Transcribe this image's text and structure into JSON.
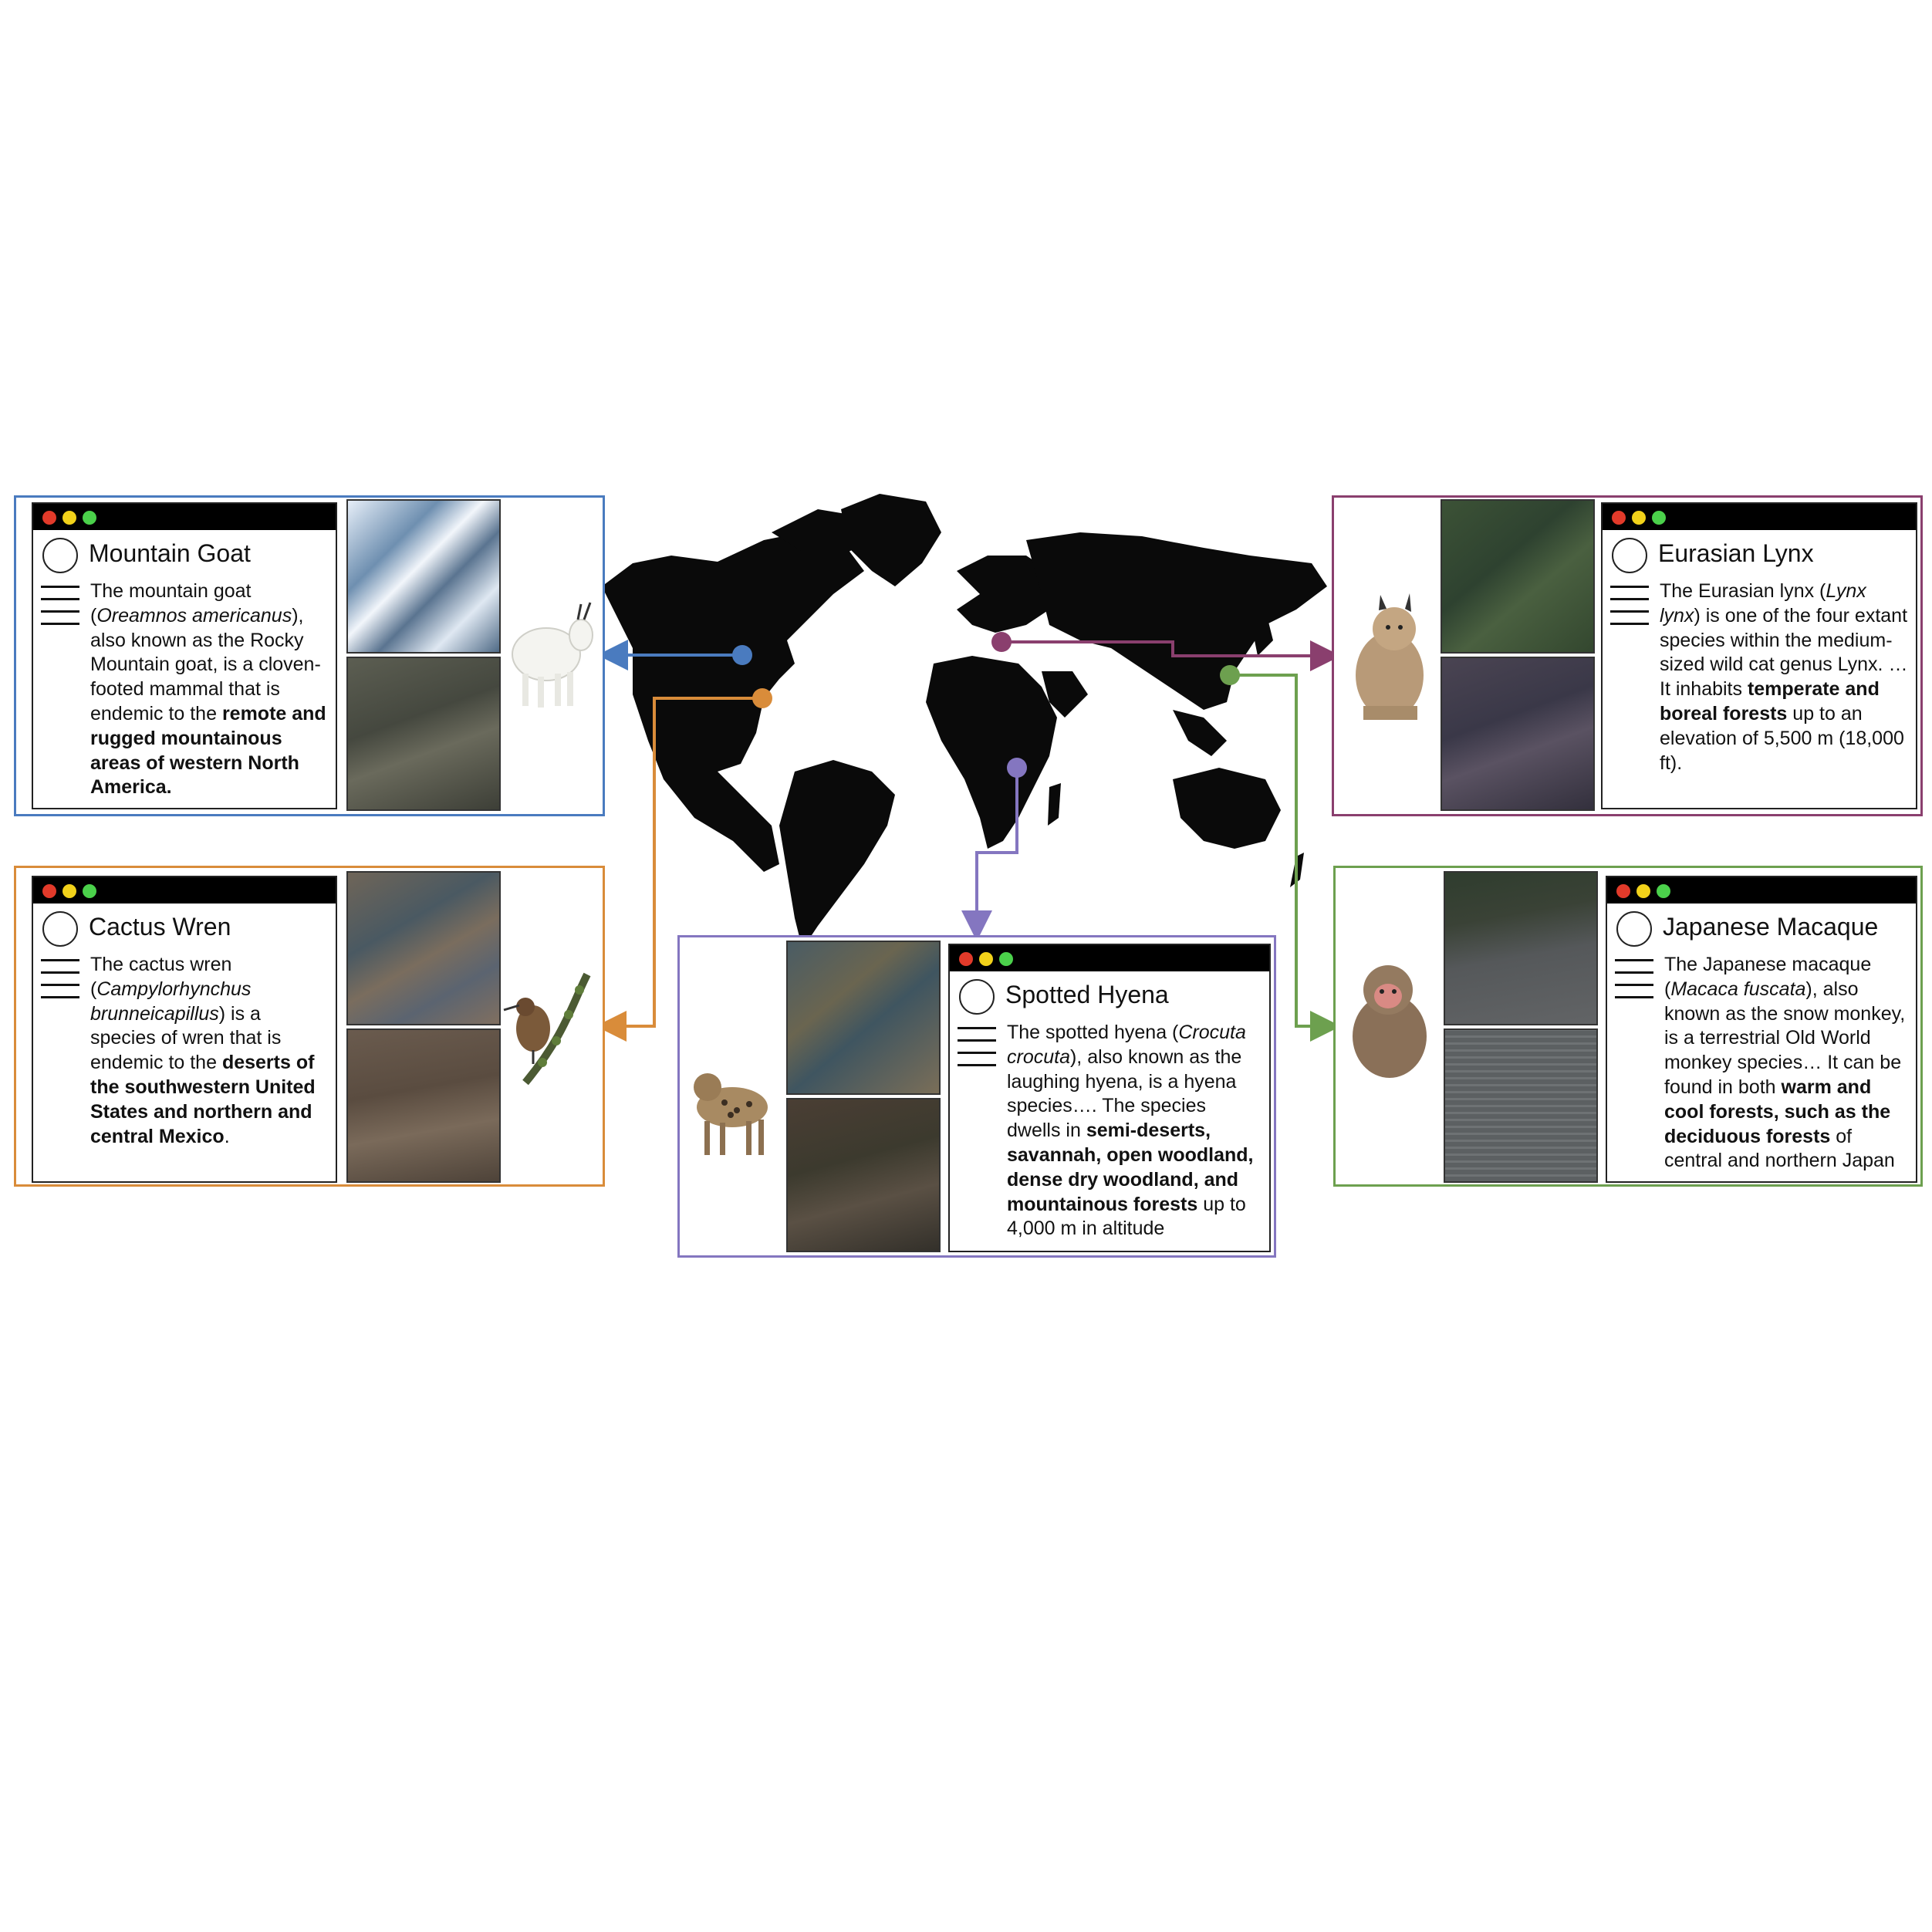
{
  "colors": {
    "mountain_goat": "#4a7bbf",
    "eurasian_lynx": "#8a3f6e",
    "cactus_wren": "#d98c3a",
    "japanese_macaque": "#6da04f",
    "spotted_hyena": "#8476c0",
    "map": "#0a0a0a",
    "dot_red": "#e23a2a",
    "dot_yellow": "#f2d21a",
    "dot_green": "#4bd14b"
  },
  "species": [
    {
      "key": "mountain_goat",
      "title": "Mountain Goat",
      "icon": "mountain-goat-icon",
      "desc_html": "The mountain goat (<i>Oreamnos americanus</i>), also known as the Rocky Mountain goat, is a cloven-footed mammal that is endemic to the <b>remote and rugged mountainous areas of western North America.</b>"
    },
    {
      "key": "eurasian_lynx",
      "title": "Eurasian Lynx",
      "icon": "lynx-icon",
      "desc_html": "The Eurasian lynx (<i>Lynx lynx</i>) is one of the four extant species within the medium-sized wild cat genus Lynx. … It inhabits <b>temperate and boreal forests</b> up to an elevation of 5,500 m (18,000 ft)."
    },
    {
      "key": "cactus_wren",
      "title": "Cactus Wren",
      "icon": "cactus-wren-icon",
      "desc_html": "The cactus wren (<i>Campylorhynchus brunneicapillus</i>) is a species of wren that is endemic to the <b>deserts of the southwestern United States and northern and central Mexico</b>."
    },
    {
      "key": "japanese_macaque",
      "title": "Japanese Macaque",
      "icon": "macaque-icon",
      "desc_html": "The Japanese macaque (<i>Macaca fuscata</i>), also known as the snow monkey, is a terrestrial Old World monkey species… It can be found in both <b>warm and cool forests, such as the deciduous forests</b> of central and northern Japan"
    },
    {
      "key": "spotted_hyena",
      "title": "Spotted Hyena",
      "icon": "hyena-icon",
      "desc_html": "The spotted hyena (<i>Crocuta crocuta</i>), also known as the laughing hyena, is a hyena species…. The species dwells in <b>semi-deserts, savannah, open woodland, dense dry woodland, and mountainous forests</b> up to 4,000 m in altitude"
    }
  ]
}
